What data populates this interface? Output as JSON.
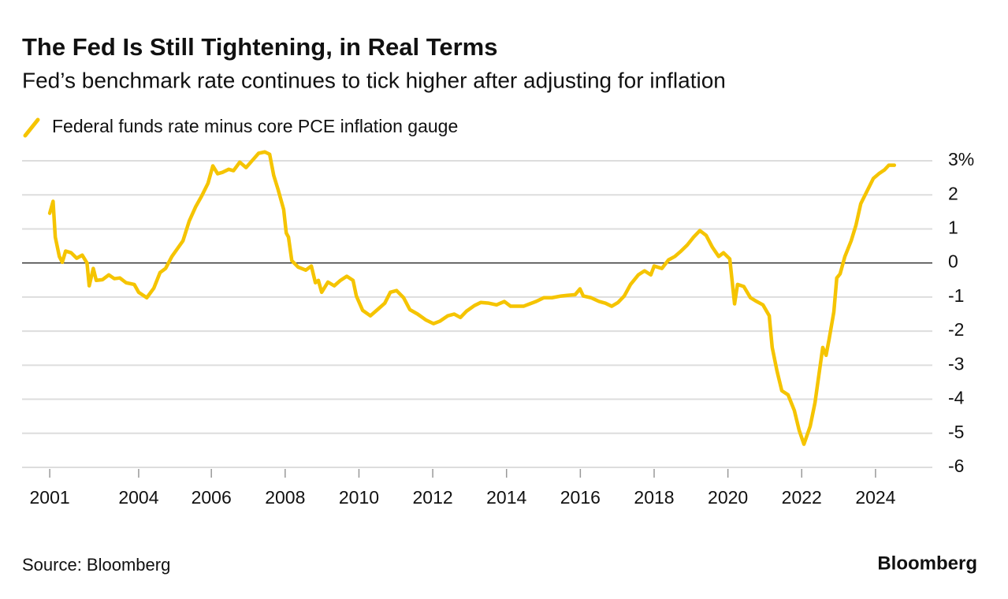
{
  "chart_data": {
    "type": "line",
    "title": "The Fed Is Still Tightening, in Real Terms",
    "subtitle": "Fed’s benchmark rate continues to tick higher after adjusting for inflation",
    "source": "Source: Bloomberg",
    "brand": "Bloomberg",
    "xlim": [
      2000.87,
      2025.54
    ],
    "xticks": [
      {
        "value": 2001.62,
        "label": "2001"
      },
      {
        "value": 2004.03,
        "label": "2004"
      },
      2006,
      2008,
      2010,
      2012,
      2014,
      2016,
      2018,
      2020,
      2022,
      2024
    ],
    "ylim": [
      -6,
      3
    ],
    "yticks": [
      {
        "value": 3,
        "label": "3%"
      },
      2,
      1,
      0,
      -1,
      -2,
      -3,
      -4,
      -5,
      -6
    ],
    "grid": true,
    "x": [
      2001.62,
      2001.71,
      2001.77,
      2001.88,
      2001.96,
      2002.05,
      2002.2,
      2002.35,
      2002.5,
      2002.63,
      2002.69,
      2002.8,
      2002.88,
      2003.05,
      2003.22,
      2003.37,
      2003.52,
      2003.69,
      2003.91,
      2004.03,
      2004.25,
      2004.44,
      2004.61,
      2004.76,
      2004.93,
      2005.08,
      2005.23,
      2005.4,
      2005.57,
      2005.74,
      2005.91,
      2006.04,
      2006.17,
      2006.3,
      2006.47,
      2006.6,
      2006.77,
      2006.94,
      2007.11,
      2007.28,
      2007.45,
      2007.58,
      2007.69,
      2007.81,
      2007.96,
      2008.03,
      2008.09,
      2008.18,
      2008.35,
      2008.56,
      2008.71,
      2008.82,
      2008.9,
      2008.99,
      2009.16,
      2009.33,
      2009.5,
      2009.67,
      2009.84,
      2009.93,
      2010.1,
      2010.31,
      2010.48,
      2010.7,
      2010.85,
      2011.02,
      2011.21,
      2011.38,
      2011.59,
      2011.81,
      2012.02,
      2012.19,
      2012.41,
      2012.58,
      2012.75,
      2012.92,
      2013.13,
      2013.3,
      2013.52,
      2013.73,
      2013.94,
      2014.11,
      2014.29,
      2014.46,
      2014.63,
      2014.8,
      2015.01,
      2015.23,
      2015.48,
      2015.65,
      2015.86,
      2015.99,
      2016.08,
      2016.29,
      2016.51,
      2016.68,
      2016.85,
      2017.02,
      2017.19,
      2017.36,
      2017.57,
      2017.74,
      2017.91,
      2018.0,
      2018.21,
      2018.39,
      2018.56,
      2018.73,
      2018.9,
      2019.07,
      2019.24,
      2019.41,
      2019.58,
      2019.75,
      2019.88,
      2020.05,
      2020.18,
      2020.26,
      2020.43,
      2020.61,
      2020.78,
      2020.95,
      2021.12,
      2021.2,
      2021.33,
      2021.46,
      2021.63,
      2021.8,
      2021.93,
      2022.06,
      2022.23,
      2022.36,
      2022.48,
      2022.57,
      2022.66,
      2022.74,
      2022.87,
      2022.95,
      2023.04,
      2023.17,
      2023.34,
      2023.47,
      2023.6,
      2023.77,
      2023.94,
      2024.09,
      2024.24,
      2024.36,
      2024.51
    ],
    "series": [
      {
        "name": "Federal funds rate minus core PCE inflation gauge",
        "color": "#f5c400",
        "values": [
          1.46,
          1.81,
          0.76,
          0.19,
          0.02,
          0.35,
          0.3,
          0.14,
          0.23,
          0,
          -0.67,
          -0.16,
          -0.51,
          -0.49,
          -0.35,
          -0.46,
          -0.44,
          -0.58,
          -0.63,
          -0.86,
          -1.02,
          -0.74,
          -0.28,
          -0.16,
          0.19,
          0.42,
          0.65,
          1.23,
          1.64,
          1.97,
          2.34,
          2.85,
          2.62,
          2.66,
          2.75,
          2.71,
          2.96,
          2.8,
          3.01,
          3.22,
          3.26,
          3.19,
          2.57,
          2.15,
          1.57,
          0.88,
          0.76,
          0.07,
          -0.12,
          -0.21,
          -0.09,
          -0.58,
          -0.51,
          -0.86,
          -0.56,
          -0.67,
          -0.51,
          -0.39,
          -0.51,
          -0.97,
          -1.39,
          -1.55,
          -1.39,
          -1.18,
          -0.86,
          -0.81,
          -1.02,
          -1.37,
          -1.5,
          -1.67,
          -1.78,
          -1.71,
          -1.55,
          -1.5,
          -1.6,
          -1.41,
          -1.25,
          -1.16,
          -1.18,
          -1.23,
          -1.13,
          -1.27,
          -1.27,
          -1.27,
          -1.2,
          -1.13,
          -1.02,
          -1.02,
          -0.97,
          -0.95,
          -0.93,
          -0.76,
          -0.97,
          -1.02,
          -1.13,
          -1.18,
          -1.27,
          -1.16,
          -0.97,
          -0.63,
          -0.35,
          -0.23,
          -0.35,
          -0.09,
          -0.16,
          0.09,
          0.19,
          0.35,
          0.53,
          0.76,
          0.95,
          0.81,
          0.46,
          0.19,
          0.3,
          0.12,
          -1.2,
          -0.63,
          -0.69,
          -1.02,
          -1.13,
          -1.23,
          -1.55,
          -2.48,
          -3.17,
          -3.75,
          -3.87,
          -4.33,
          -4.91,
          -5.32,
          -4.79,
          -4.1,
          -3.17,
          -2.48,
          -2.71,
          -2.25,
          -1.44,
          -0.44,
          -0.32,
          0.19,
          0.65,
          1.11,
          1.74,
          2.11,
          2.48,
          2.62,
          2.73,
          2.87,
          2.87
        ]
      }
    ]
  }
}
